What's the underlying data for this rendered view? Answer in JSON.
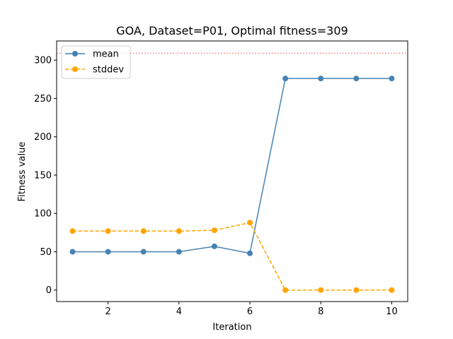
{
  "chart_data": {
    "type": "line",
    "title": "GOA, Dataset=P01, Optimal fitness=309",
    "xlabel": "Iteration",
    "ylabel": "Fitness value",
    "x": [
      1,
      2,
      3,
      4,
      5,
      6,
      7,
      8,
      9,
      10
    ],
    "xlim": [
      0.55,
      10.45
    ],
    "ylim": [
      -15,
      325
    ],
    "xticks": [
      2,
      4,
      6,
      8,
      10
    ],
    "yticks": [
      0,
      50,
      100,
      150,
      200,
      250,
      300
    ],
    "grid": false,
    "legend_position": "top-left",
    "reference_line": {
      "y": 309,
      "style": "dotted",
      "color": "#f08080"
    },
    "series": [
      {
        "name": "mean",
        "color": "#4682b4",
        "style": "solid",
        "marker": "circle",
        "values": [
          50,
          50,
          50,
          50,
          57,
          48,
          276,
          276,
          276,
          276
        ]
      },
      {
        "name": "stddev",
        "color": "#ffa500",
        "style": "dashed",
        "marker": "circle",
        "values": [
          77,
          77,
          77,
          77,
          78,
          88,
          0,
          0,
          0,
          0
        ]
      }
    ]
  }
}
